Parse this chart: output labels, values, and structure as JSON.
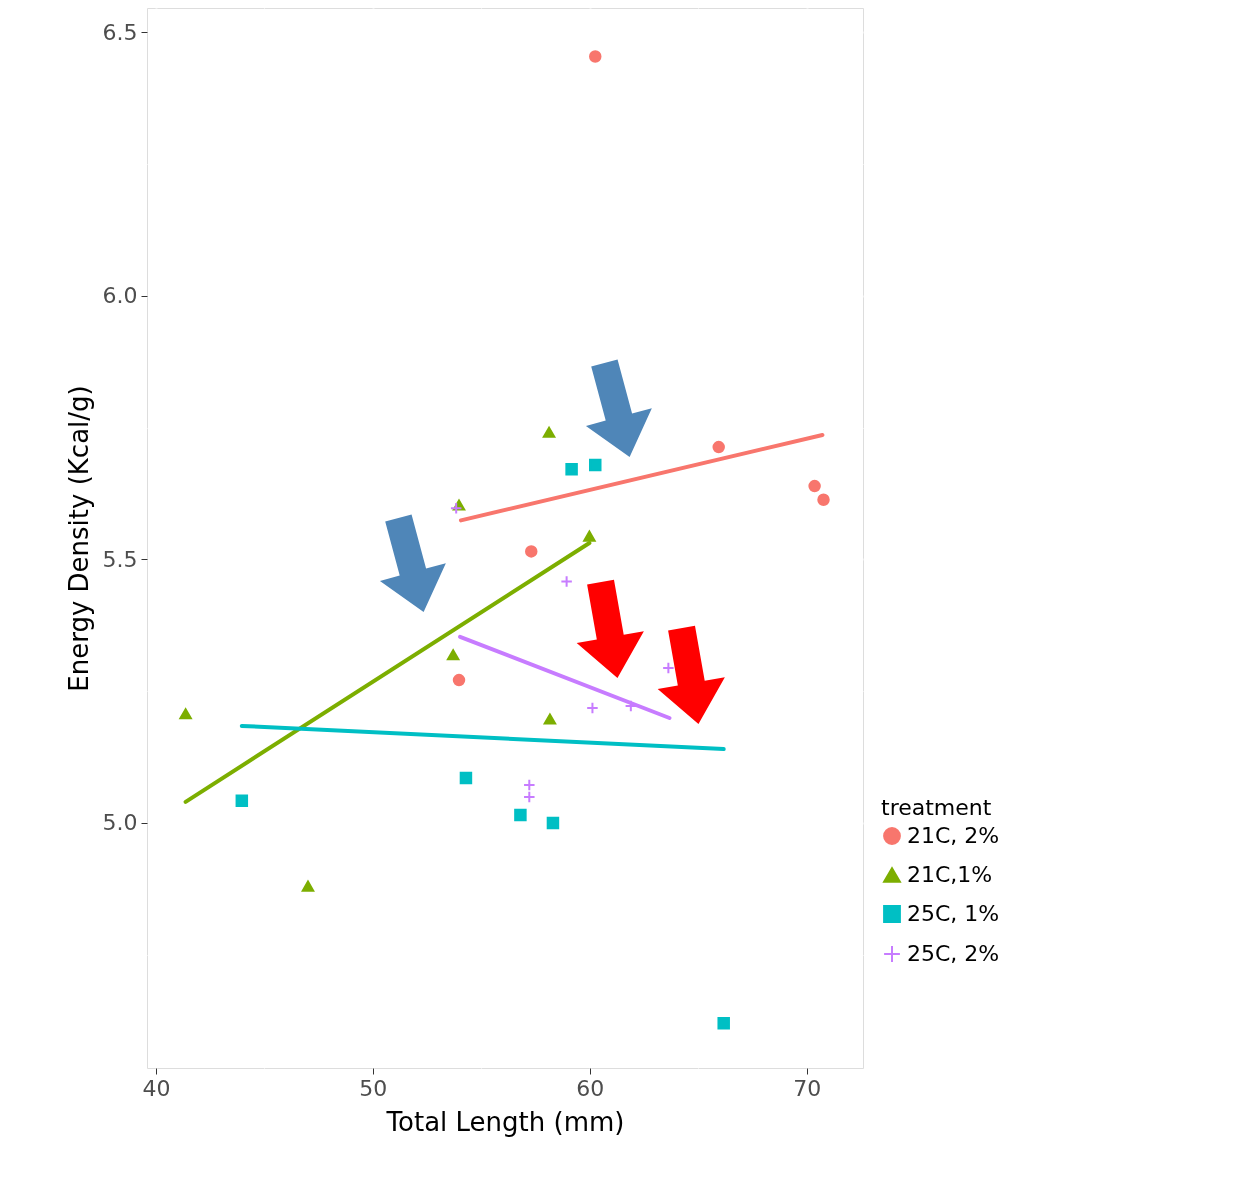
{
  "chart_data": {
    "type": "scatter",
    "xlabel": "Total Length (mm)",
    "ylabel": "Energy Density (Kcal/g)",
    "legend_title": "treatment",
    "xlim": [
      39.59,
      72.59
    ],
    "ylim": [
      4.535,
      6.546
    ],
    "xticks": [
      40,
      {
        "value": 45,
        "label": null
      },
      50,
      {
        "value": 55,
        "label": null
      },
      60,
      {
        "value": 65,
        "label": null
      },
      70
    ],
    "yticks": [
      {
        "value": 4.75,
        "label": null
      },
      {
        "value": 5.0,
        "label": "5.0"
      },
      {
        "value": 5.25,
        "label": null
      },
      {
        "value": 5.5,
        "label": "5.5"
      },
      {
        "value": 5.75,
        "label": null
      },
      {
        "value": 6.0,
        "label": "6.0"
      },
      {
        "value": 6.25,
        "label": null
      },
      {
        "value": 6.5,
        "label": "6.5"
      }
    ],
    "grid": true,
    "legend": "right",
    "series": [
      {
        "name": "21C, 2%",
        "marker": "circle",
        "color": "#f8766d",
        "x": [
          60.25,
          65.94,
          70.36,
          70.77,
          57.3,
          53.97
        ],
        "values": [
          6.454,
          5.713,
          5.639,
          5.613,
          5.515,
          5.271
        ]
      },
      {
        "name": "21C,1%",
        "marker": "triangle",
        "color": "#7cae00",
        "x": [
          41.37,
          47.01,
          58.12,
          53.97,
          59.98,
          53.7,
          58.16
        ],
        "values": [
          5.207,
          4.88,
          5.741,
          5.603,
          5.544,
          5.319,
          5.197
        ]
      },
      {
        "name": "25C, 1%",
        "marker": "square",
        "color": "#00bfc4",
        "x": [
          43.96,
          54.29,
          56.8,
          58.3,
          59.16,
          60.25,
          66.17
        ],
        "values": [
          5.042,
          5.085,
          5.015,
          5.0,
          5.671,
          5.679,
          4.62
        ]
      },
      {
        "name": "25C, 2%",
        "marker": "cross",
        "color": "#c77cff",
        "x": [
          53.84,
          58.93,
          60.12,
          61.89,
          57.21,
          57.21,
          63.62
        ],
        "values": [
          5.597,
          5.458,
          5.218,
          5.222,
          5.072,
          5.049,
          5.294
        ]
      },
      {
        "type": "line",
        "color": "#f8766d",
        "x": [
          54.06,
          70.72
        ],
        "values": [
          5.574,
          5.736
        ]
      },
      {
        "type": "line",
        "color": "#7cae00",
        "x": [
          41.37,
          59.98
        ],
        "values": [
          5.04,
          5.531
        ]
      },
      {
        "type": "line",
        "color": "#00bfc4",
        "x": [
          43.96,
          66.17
        ],
        "values": [
          5.184,
          5.14
        ]
      },
      {
        "type": "line",
        "color": "#c77cff",
        "x": [
          54.02,
          63.67
        ],
        "values": [
          5.353,
          5.199
        ]
      }
    ]
  }
}
